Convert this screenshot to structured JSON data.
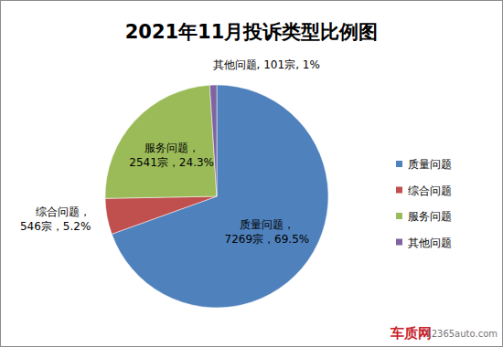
{
  "chart_data": {
    "type": "pie",
    "title": "2021年11月投诉类型比例图",
    "categories": [
      "质量问题",
      "综合问题",
      "服务问题",
      "其他问题"
    ],
    "values": [
      69.5,
      5.2,
      24.3,
      1
    ],
    "value_labels": [
      "69.5%",
      "5.2%",
      "24.3%",
      "1%"
    ],
    "counts": [
      7269,
      546,
      2541,
      101
    ],
    "count_labels": [
      "7269宗",
      "546宗",
      "2541宗",
      "101宗"
    ],
    "label_separators": [
      "，",
      "，",
      "，",
      ", "
    ],
    "colors": [
      "#4f81bd",
      "#c0504d",
      "#9bbb59",
      "#8064a2"
    ],
    "legend": "right",
    "data_labels": true,
    "watermark": [
      "车质网",
      "12365auto.com"
    ]
  }
}
